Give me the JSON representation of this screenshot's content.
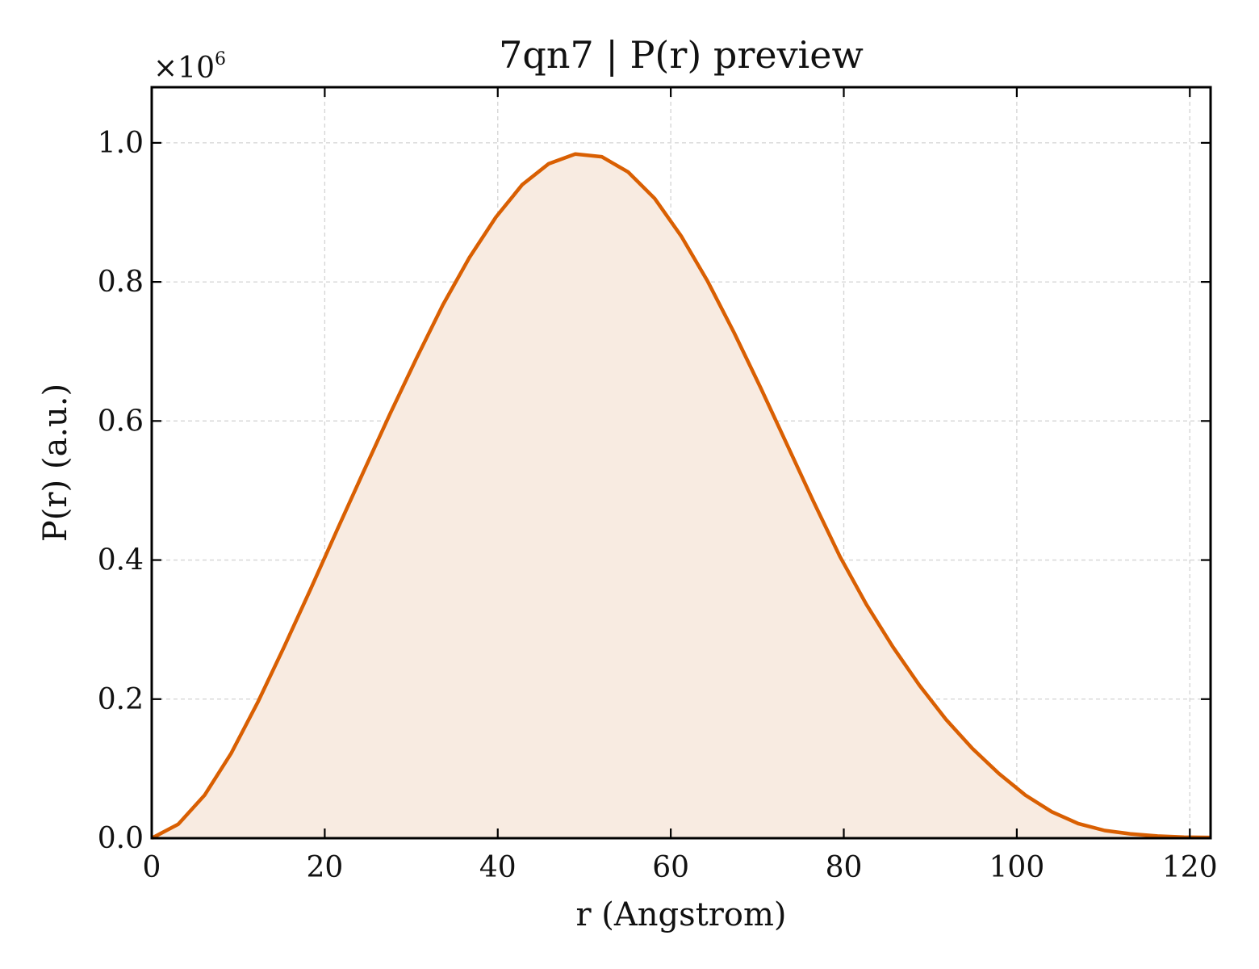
{
  "chart_data": {
    "type": "area",
    "title": "7qn7 | P(r) preview",
    "xlabel": "r (Angstrom)",
    "ylabel": "P(r) (a.u.)",
    "y_multiplier_text": "×10",
    "y_multiplier_exponent": "6",
    "xlim": [
      0,
      122.4
    ],
    "ylim": [
      0,
      1.08
    ],
    "xticks": [
      0,
      20,
      40,
      60,
      80,
      100,
      120
    ],
    "xtick_labels": [
      "0",
      "20",
      "40",
      "60",
      "80",
      "100",
      "120"
    ],
    "yticks": [
      0.0,
      0.2,
      0.4,
      0.6,
      0.8,
      1.0
    ],
    "ytick_labels": [
      "0.0",
      "0.2",
      "0.4",
      "0.6",
      "0.8",
      "1.0"
    ],
    "grid": true,
    "line_color": "#d95f02",
    "fill_color": "#f8ebe1",
    "x": [
      0,
      3.06,
      6.12,
      9.18,
      12.24,
      15.3,
      18.36,
      21.42,
      24.48,
      27.54,
      30.6,
      33.66,
      36.72,
      39.78,
      42.84,
      45.9,
      48.96,
      52.02,
      55.08,
      58.14,
      61.2,
      64.26,
      67.32,
      70.38,
      73.44,
      76.5,
      79.56,
      82.62,
      85.68,
      88.74,
      91.8,
      94.86,
      97.92,
      100.98,
      104.04,
      107.1,
      110.16,
      113.22,
      116.28,
      119.34,
      122.4
    ],
    "y": [
      0.0,
      0.02,
      0.062,
      0.122,
      0.195,
      0.275,
      0.358,
      0.443,
      0.527,
      0.61,
      0.69,
      0.767,
      0.835,
      0.893,
      0.94,
      0.97,
      0.984,
      0.98,
      0.958,
      0.92,
      0.866,
      0.801,
      0.727,
      0.648,
      0.566,
      0.484,
      0.405,
      0.336,
      0.275,
      0.22,
      0.171,
      0.129,
      0.093,
      0.062,
      0.038,
      0.021,
      0.011,
      0.006,
      0.003,
      0.0015,
      0.001
    ]
  }
}
